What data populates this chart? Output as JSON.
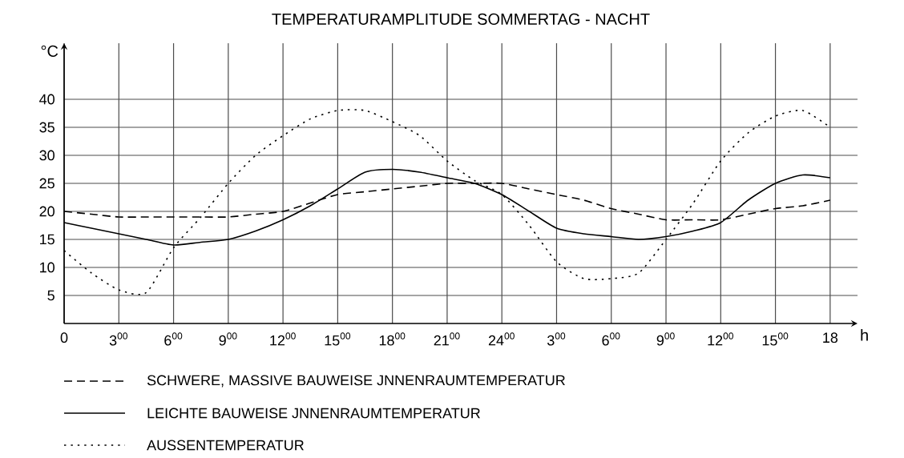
{
  "chart_data": {
    "type": "line",
    "title": "TEMPERATURAMPLITUDE SOMMERTAG - NACHT",
    "xlabel": "h",
    "ylabel": "°C",
    "ylim": [
      0,
      50
    ],
    "categories": [
      "0",
      null,
      "3$^{00}$",
      null,
      "6$^{00}$",
      null,
      "9$^{00}$",
      null,
      "12$^{00}$",
      null,
      "15$^{00}$",
      null,
      "18$^{00}$",
      null,
      "21$^{00}$",
      null,
      "24$^{00}$",
      null,
      "3$^{00}$",
      null,
      "6$^{00}$",
      null,
      "9$^{00}$",
      null,
      "12$^{00}$",
      null,
      "15$^{00}$",
      null,
      "18"
    ],
    "yticks": [
      5,
      10,
      15,
      20,
      25,
      30,
      35,
      40
    ],
    "grid": true,
    "legend": "bottom",
    "marker": "none",
    "series": [
      {
        "name": "SCHWERE, MASSIVE BAUWEISE     JNNENRAUMTEMPERATUR",
        "color": "#000000",
        "line_style": "dashed",
        "values": [
          20,
          19.5,
          19,
          19,
          19,
          19,
          19,
          19.5,
          20,
          21.5,
          23,
          23.5,
          24,
          24.5,
          25,
          25,
          25,
          24,
          23,
          22,
          20.5,
          19.5,
          18.5,
          18.5,
          18.5,
          19.5,
          20.5,
          21,
          22
        ]
      },
      {
        "name": "LEICHTE BAUWEISE     JNNENRAUMTEMPERATUR",
        "color": "#000000",
        "line_style": "solid",
        "values": [
          18,
          17,
          16,
          15,
          14,
          14.5,
          15,
          16.5,
          18.5,
          21,
          24,
          27,
          27.5,
          27,
          26,
          25,
          23,
          20,
          17,
          16,
          15.5,
          15,
          15.5,
          16.5,
          18,
          22,
          25,
          26.5,
          26
        ]
      },
      {
        "name": "AUSSENTEMPERATUR",
        "color": "#000000",
        "line_style": "dotted",
        "values": [
          13,
          9,
          6,
          5.5,
          13.5,
          19,
          25,
          30,
          33.5,
          36.5,
          38,
          38,
          36,
          33.5,
          29,
          25.5,
          23,
          17.5,
          11,
          8,
          8,
          9,
          15,
          21.5,
          29,
          34,
          37,
          38,
          35
        ]
      }
    ]
  }
}
